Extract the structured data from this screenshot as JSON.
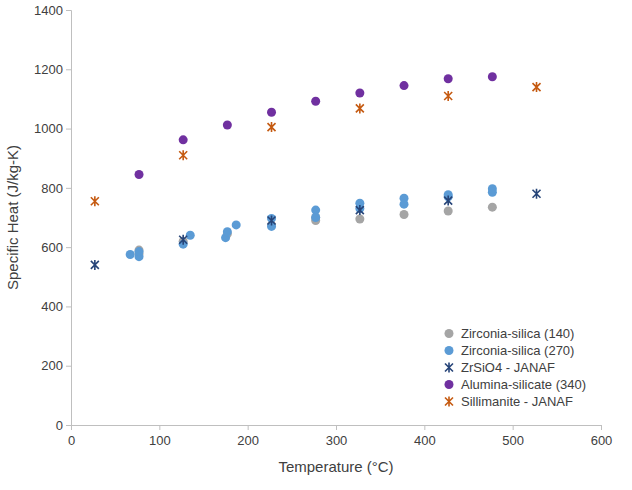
{
  "chart_data": {
    "type": "scatter",
    "x_label": "Temperature (°C)",
    "y_label": "Specific Heat (J/kg-K)",
    "xlim": [
      0,
      600
    ],
    "ylim": [
      0,
      1400
    ],
    "xticks": [
      0,
      100,
      200,
      300,
      400,
      500,
      600
    ],
    "yticks": [
      0,
      200,
      400,
      600,
      800,
      1000,
      1200,
      1400
    ],
    "grid": false,
    "legend": "lower right",
    "series": [
      {
        "name": "Zirconia-silica (140)",
        "color": "#a5a5a5",
        "marker": "circle",
        "x": [
          77,
          77,
          127,
          177,
          227,
          277,
          277,
          327,
          377,
          427,
          477
        ],
        "values": [
          590,
          578,
          620,
          645,
          675,
          690,
          700,
          695,
          710,
          722,
          735
        ]
      },
      {
        "name": "Zirconia-silica (270)",
        "color": "#5b9bd5",
        "marker": "circle",
        "x": [
          67,
          77,
          77,
          127,
          135,
          175,
          177,
          187,
          227,
          227,
          277,
          277,
          327,
          327,
          377,
          377,
          427,
          427,
          477,
          477
        ],
        "values": [
          575,
          568,
          585,
          610,
          640,
          632,
          652,
          675,
          697,
          670,
          725,
          700,
          748,
          730,
          765,
          745,
          777,
          770,
          797,
          785
        ]
      },
      {
        "name": "ZrSiO4 - JANAF",
        "color": "#264478",
        "marker": "star",
        "x": [
          27,
          127,
          227,
          327,
          427,
          527
        ],
        "values": [
          540,
          625,
          690,
          725,
          757,
          780
        ]
      },
      {
        "name": "Alumina-silicate (340)",
        "color": "#7030a0",
        "marker": "circle",
        "x": [
          77,
          127,
          177,
          227,
          277,
          327,
          377,
          427,
          477
        ],
        "values": [
          845,
          962,
          1012,
          1055,
          1092,
          1120,
          1145,
          1168,
          1175
        ]
      },
      {
        "name": "Sillimanite - JANAF",
        "color": "#c55a11",
        "marker": "star",
        "x": [
          27,
          127,
          227,
          327,
          427,
          527
        ],
        "values": [
          755,
          910,
          1005,
          1068,
          1110,
          1140
        ]
      }
    ]
  }
}
